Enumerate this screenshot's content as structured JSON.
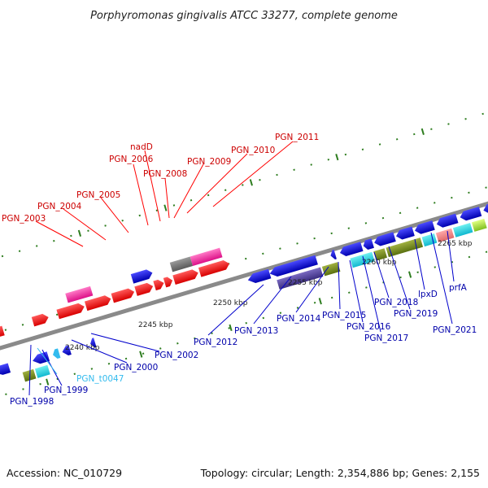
{
  "title": "Porphyromonas gingivalis ATCC 33277, complete genome",
  "footer": {
    "accession": "Accession: NC_010729",
    "summary": "Topology: circular; Length: 2,354,886 bp; Genes: 2,155"
  },
  "ticks": [
    "2240 kbp",
    "2245 kbp",
    "2250 kbp",
    "2255 kbp",
    "2260 kbp",
    "2265 kbp"
  ],
  "labels_forward": [
    "PGN_2003",
    "PGN_2004",
    "PGN_2005",
    "PGN_2006",
    "nadD",
    "PGN_2008",
    "PGN_2009",
    "PGN_2010",
    "PGN_2011"
  ],
  "labels_reverse": [
    "PGN_1998",
    "PGN_1999",
    "PGN_t0047",
    "PGN_2000",
    "PGN_2002",
    "PGN_2012",
    "PGN_2013",
    "PGN_2014",
    "PGN_2015",
    "PGN_2016",
    "PGN_2017",
    "PGN_2018",
    "PGN_2019",
    "lpxD",
    "PGN_2021",
    "prfA"
  ],
  "colors": {
    "forward": "#ff0000",
    "reverse": "#0000dd",
    "trna": "#33bbee",
    "backbone": "#8a8a8a",
    "dots": "#2e7d1f"
  }
}
